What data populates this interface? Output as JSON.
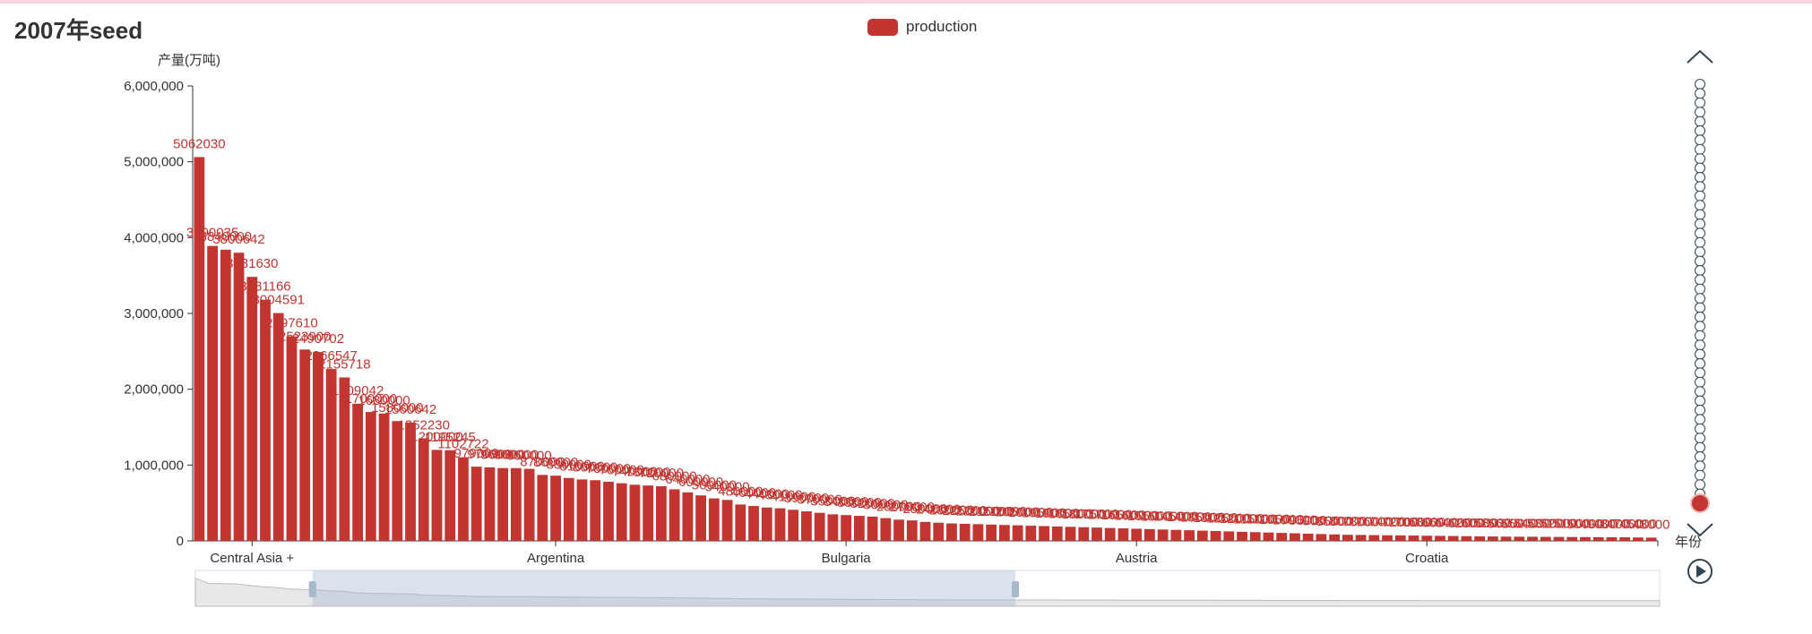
{
  "title": "2007年seed",
  "legend": {
    "label": "production",
    "color": "#c23531"
  },
  "timeline": {
    "label": "年份",
    "steps": 46,
    "current_index": 45
  },
  "datazoom": {
    "start": 0.08,
    "end": 0.56
  },
  "chart_data": {
    "type": "bar",
    "title": "2007年seed",
    "ylabel": "产量(万吨)",
    "xlabel": "",
    "ylim": [
      0,
      6000000
    ],
    "yticks": [
      "6,000,000",
      "5,000,000",
      "4,000,000",
      "3,000,000",
      "2,000,000",
      "1,000,000",
      "0"
    ],
    "category_labels": [
      {
        "index": 4,
        "label": "Central Asia +"
      },
      {
        "index": 27,
        "label": "Argentina"
      },
      {
        "index": 49,
        "label": "Bulgaria"
      },
      {
        "index": 71,
        "label": "Austria"
      },
      {
        "index": 93,
        "label": "Croatia"
      }
    ],
    "series": [
      {
        "name": "production",
        "values": [
          5062030,
          3890035,
          3840000,
          3800642,
          3481630,
          3181166,
          3004591,
          2697610,
          2523900,
          2490702,
          2266547,
          2155718,
          1809042,
          1700000,
          1680000,
          1580000,
          1560642,
          1352230,
          1200000,
          1195245,
          1102722,
          979000,
          970000,
          960000,
          960000,
          950000,
          870000,
          860000,
          830000,
          810000,
          800000,
          780000,
          760000,
          740000,
          730000,
          720000,
          680000,
          640000,
          600000,
          560000,
          540000,
          480000,
          460000,
          440000,
          430000,
          410000,
          390000,
          370000,
          350000,
          340000,
          330000,
          320000,
          300000,
          280000,
          270000,
          250000,
          240000,
          230000,
          225000,
          220000,
          215000,
          210000,
          205000,
          200000,
          195000,
          190000,
          185000,
          180000,
          175000,
          170000,
          165000,
          160000,
          155000,
          150000,
          145000,
          140000,
          135000,
          130000,
          125000,
          120000,
          115000,
          110000,
          105000,
          100000,
          95000,
          90000,
          85000,
          80000,
          78000,
          76000,
          74000,
          72000,
          70000,
          68000,
          66000,
          64000,
          62000,
          60000,
          58000,
          56000,
          55000,
          54000,
          53000,
          52000,
          51000,
          50000,
          49000,
          48000,
          47000,
          45000,
          43000
        ]
      }
    ]
  }
}
